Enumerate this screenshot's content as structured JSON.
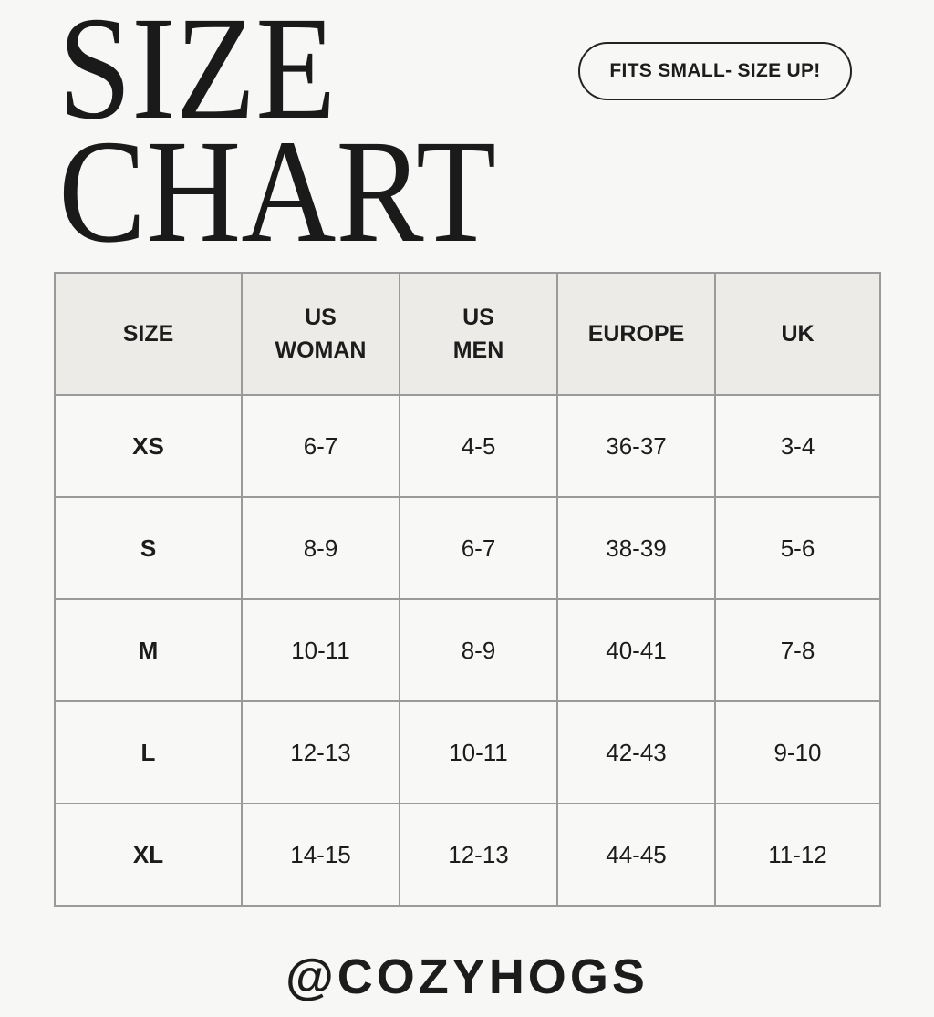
{
  "title": {
    "line1": "SIZE",
    "line2": "CHART"
  },
  "badge": "FITS SMALL- SIZE UP!",
  "table": {
    "headers": [
      [
        "SIZE",
        ""
      ],
      [
        "US",
        "WOMAN"
      ],
      [
        "US",
        "MEN"
      ],
      [
        "EUROPE",
        ""
      ],
      [
        "UK",
        ""
      ]
    ],
    "rows": [
      [
        "XS",
        "6-7",
        "4-5",
        "36-37",
        "3-4"
      ],
      [
        "S",
        "8-9",
        "6-7",
        "38-39",
        "5-6"
      ],
      [
        "M",
        "10-11",
        "8-9",
        "40-41",
        "7-8"
      ],
      [
        "L",
        "12-13",
        "10-11",
        "42-43",
        "9-10"
      ],
      [
        "XL",
        "14-15",
        "12-13",
        "44-45",
        "11-12"
      ]
    ]
  },
  "footer": {
    "handle": "@COZYHOGS"
  },
  "colors": {
    "background": "#f7f7f5",
    "header_fill": "#ecebe8",
    "grid": "#9a9a9a",
    "text": "#1c1c1c"
  }
}
